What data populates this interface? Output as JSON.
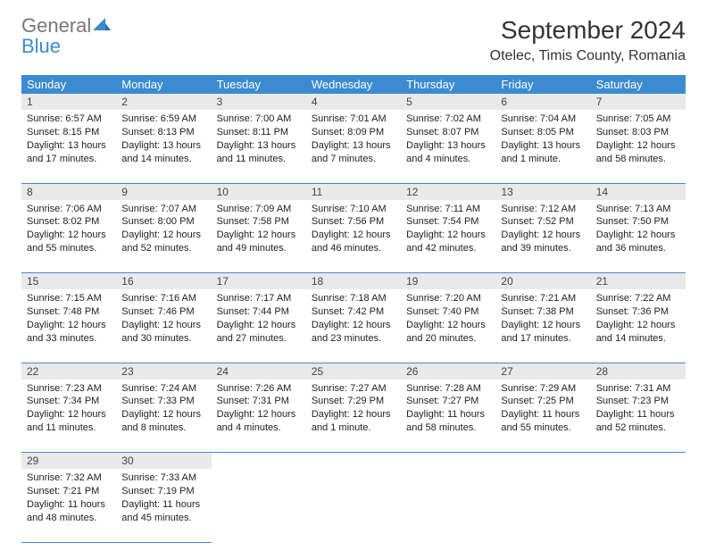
{
  "logo": {
    "general": "General",
    "blue": "Blue"
  },
  "title": "September 2024",
  "location": "Otelec, Timis County, Romania",
  "colors": {
    "header_bg": "#3b8bd0",
    "header_fg": "#ffffff",
    "daynum_bg": "#e9e9e9",
    "border": "#3b8bd0",
    "logo_gray": "#777777",
    "logo_blue": "#3b8bd0"
  },
  "day_headers": [
    "Sunday",
    "Monday",
    "Tuesday",
    "Wednesday",
    "Thursday",
    "Friday",
    "Saturday"
  ],
  "weeks": [
    [
      {
        "n": "1",
        "sr": "Sunrise: 6:57 AM",
        "ss": "Sunset: 8:15 PM",
        "dl": "Daylight: 13 hours and 17 minutes."
      },
      {
        "n": "2",
        "sr": "Sunrise: 6:59 AM",
        "ss": "Sunset: 8:13 PM",
        "dl": "Daylight: 13 hours and 14 minutes."
      },
      {
        "n": "3",
        "sr": "Sunrise: 7:00 AM",
        "ss": "Sunset: 8:11 PM",
        "dl": "Daylight: 13 hours and 11 minutes."
      },
      {
        "n": "4",
        "sr": "Sunrise: 7:01 AM",
        "ss": "Sunset: 8:09 PM",
        "dl": "Daylight: 13 hours and 7 minutes."
      },
      {
        "n": "5",
        "sr": "Sunrise: 7:02 AM",
        "ss": "Sunset: 8:07 PM",
        "dl": "Daylight: 13 hours and 4 minutes."
      },
      {
        "n": "6",
        "sr": "Sunrise: 7:04 AM",
        "ss": "Sunset: 8:05 PM",
        "dl": "Daylight: 13 hours and 1 minute."
      },
      {
        "n": "7",
        "sr": "Sunrise: 7:05 AM",
        "ss": "Sunset: 8:03 PM",
        "dl": "Daylight: 12 hours and 58 minutes."
      }
    ],
    [
      {
        "n": "8",
        "sr": "Sunrise: 7:06 AM",
        "ss": "Sunset: 8:02 PM",
        "dl": "Daylight: 12 hours and 55 minutes."
      },
      {
        "n": "9",
        "sr": "Sunrise: 7:07 AM",
        "ss": "Sunset: 8:00 PM",
        "dl": "Daylight: 12 hours and 52 minutes."
      },
      {
        "n": "10",
        "sr": "Sunrise: 7:09 AM",
        "ss": "Sunset: 7:58 PM",
        "dl": "Daylight: 12 hours and 49 minutes."
      },
      {
        "n": "11",
        "sr": "Sunrise: 7:10 AM",
        "ss": "Sunset: 7:56 PM",
        "dl": "Daylight: 12 hours and 46 minutes."
      },
      {
        "n": "12",
        "sr": "Sunrise: 7:11 AM",
        "ss": "Sunset: 7:54 PM",
        "dl": "Daylight: 12 hours and 42 minutes."
      },
      {
        "n": "13",
        "sr": "Sunrise: 7:12 AM",
        "ss": "Sunset: 7:52 PM",
        "dl": "Daylight: 12 hours and 39 minutes."
      },
      {
        "n": "14",
        "sr": "Sunrise: 7:13 AM",
        "ss": "Sunset: 7:50 PM",
        "dl": "Daylight: 12 hours and 36 minutes."
      }
    ],
    [
      {
        "n": "15",
        "sr": "Sunrise: 7:15 AM",
        "ss": "Sunset: 7:48 PM",
        "dl": "Daylight: 12 hours and 33 minutes."
      },
      {
        "n": "16",
        "sr": "Sunrise: 7:16 AM",
        "ss": "Sunset: 7:46 PM",
        "dl": "Daylight: 12 hours and 30 minutes."
      },
      {
        "n": "17",
        "sr": "Sunrise: 7:17 AM",
        "ss": "Sunset: 7:44 PM",
        "dl": "Daylight: 12 hours and 27 minutes."
      },
      {
        "n": "18",
        "sr": "Sunrise: 7:18 AM",
        "ss": "Sunset: 7:42 PM",
        "dl": "Daylight: 12 hours and 23 minutes."
      },
      {
        "n": "19",
        "sr": "Sunrise: 7:20 AM",
        "ss": "Sunset: 7:40 PM",
        "dl": "Daylight: 12 hours and 20 minutes."
      },
      {
        "n": "20",
        "sr": "Sunrise: 7:21 AM",
        "ss": "Sunset: 7:38 PM",
        "dl": "Daylight: 12 hours and 17 minutes."
      },
      {
        "n": "21",
        "sr": "Sunrise: 7:22 AM",
        "ss": "Sunset: 7:36 PM",
        "dl": "Daylight: 12 hours and 14 minutes."
      }
    ],
    [
      {
        "n": "22",
        "sr": "Sunrise: 7:23 AM",
        "ss": "Sunset: 7:34 PM",
        "dl": "Daylight: 12 hours and 11 minutes."
      },
      {
        "n": "23",
        "sr": "Sunrise: 7:24 AM",
        "ss": "Sunset: 7:33 PM",
        "dl": "Daylight: 12 hours and 8 minutes."
      },
      {
        "n": "24",
        "sr": "Sunrise: 7:26 AM",
        "ss": "Sunset: 7:31 PM",
        "dl": "Daylight: 12 hours and 4 minutes."
      },
      {
        "n": "25",
        "sr": "Sunrise: 7:27 AM",
        "ss": "Sunset: 7:29 PM",
        "dl": "Daylight: 12 hours and 1 minute."
      },
      {
        "n": "26",
        "sr": "Sunrise: 7:28 AM",
        "ss": "Sunset: 7:27 PM",
        "dl": "Daylight: 11 hours and 58 minutes."
      },
      {
        "n": "27",
        "sr": "Sunrise: 7:29 AM",
        "ss": "Sunset: 7:25 PM",
        "dl": "Daylight: 11 hours and 55 minutes."
      },
      {
        "n": "28",
        "sr": "Sunrise: 7:31 AM",
        "ss": "Sunset: 7:23 PM",
        "dl": "Daylight: 11 hours and 52 minutes."
      }
    ],
    [
      {
        "n": "29",
        "sr": "Sunrise: 7:32 AM",
        "ss": "Sunset: 7:21 PM",
        "dl": "Daylight: 11 hours and 48 minutes."
      },
      {
        "n": "30",
        "sr": "Sunrise: 7:33 AM",
        "ss": "Sunset: 7:19 PM",
        "dl": "Daylight: 11 hours and 45 minutes."
      },
      null,
      null,
      null,
      null,
      null
    ]
  ]
}
